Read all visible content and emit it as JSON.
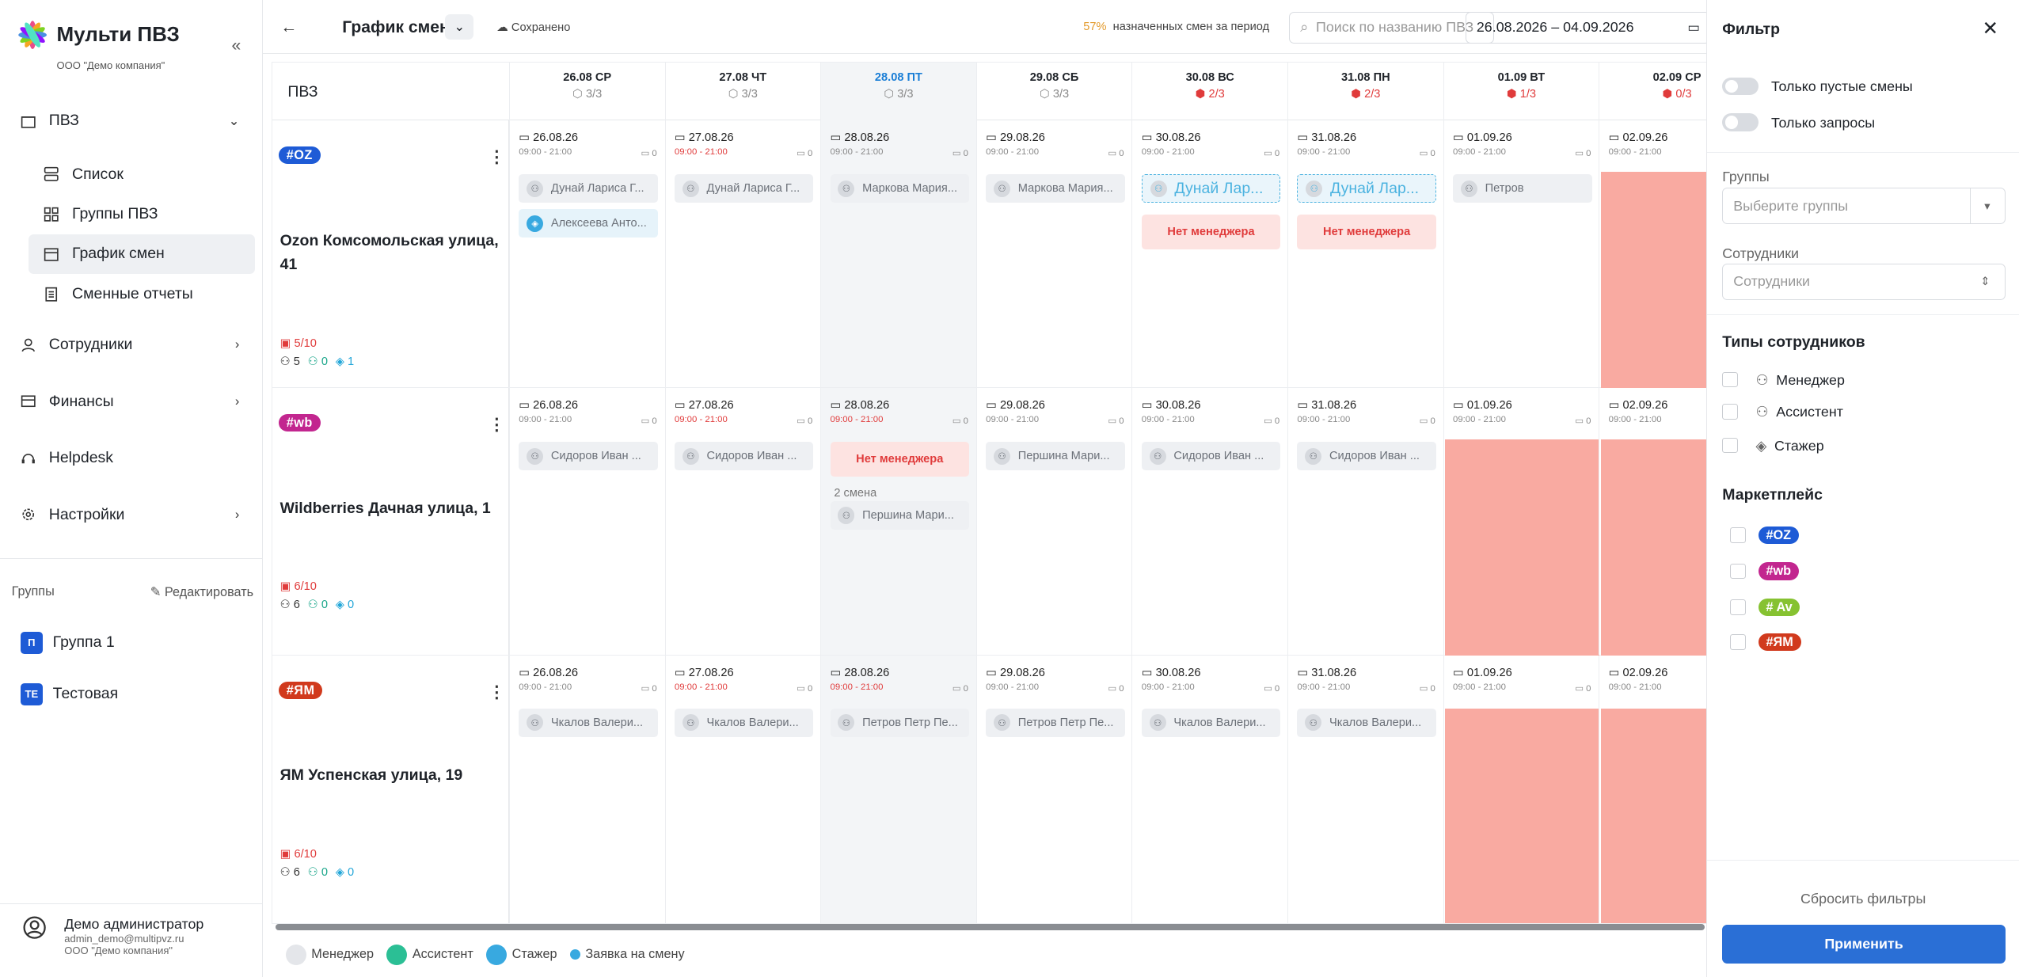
{
  "app": {
    "title": "Мульти ПВЗ",
    "company": "ООО \"Демо компания\""
  },
  "nav": {
    "pvz": "ПВЗ",
    "list": "Список",
    "groups_pvz": "Группы ПВЗ",
    "schedule": "График смен",
    "reports": "Сменные отчеты",
    "employees": "Сотрудники",
    "finance": "Финансы",
    "helpdesk": "Helpdesk",
    "settings": "Настройки"
  },
  "groups": {
    "title": "Группы",
    "edit": "Редактировать",
    "items": [
      {
        "badge": "П",
        "name": "Группа 1"
      },
      {
        "badge": "ТЕ",
        "name": "Тестовая"
      }
    ]
  },
  "user": {
    "name": "Демо администратор",
    "email": "admin_demo@multipvz.ru",
    "org": "ООО \"Демо компания\""
  },
  "topbar": {
    "title": "График смен",
    "saved": "Сохранено",
    "percent": "57%",
    "percent_text": "назначенных смен за период",
    "search_placeholder": "Поиск по названию ПВЗ",
    "date_range": "26.08.2026 – 04.09.2026"
  },
  "grid": {
    "pvz_header": "ПВЗ",
    "days": [
      {
        "label": "26.08 СР",
        "count": "3/3"
      },
      {
        "label": "27.08 ЧТ",
        "count": "3/3"
      },
      {
        "label": "28.08 ПТ",
        "count": "3/3"
      },
      {
        "label": "29.08 СБ",
        "count": "3/3"
      },
      {
        "label": "30.08 ВС",
        "count": "2/3"
      },
      {
        "label": "31.08 ПН",
        "count": "2/3"
      },
      {
        "label": "01.09 ВТ",
        "count": "1/3"
      },
      {
        "label": "02.09 СР",
        "count": "0/3"
      }
    ],
    "dates": [
      "26.08.26",
      "27.08.26",
      "28.08.26",
      "29.08.26",
      "30.08.26",
      "31.08.26",
      "01.09.26",
      "02.09.26"
    ],
    "time": "09:00 - 21:00",
    "zero": "0",
    "rows": [
      {
        "badge": "#OZ",
        "name": "Ozon Комсомольская улица, 41",
        "stat": "5/10",
        "s1": "5",
        "s2": "0",
        "s3": "1"
      },
      {
        "badge": "#wb",
        "name": "Wildberries Дачная улица, 1",
        "stat": "6/10",
        "s1": "6",
        "s2": "0",
        "s3": "0"
      },
      {
        "badge": "#ЯМ",
        "name": "ЯМ Успенская улица, 19",
        "stat": "6/10",
        "s1": "6",
        "s2": "0",
        "s3": "0"
      }
    ],
    "chips": {
      "dunay": "Дунай Лариса Г...",
      "alekseeva": "Алексеева Анто...",
      "markova": "Маркова Мария...",
      "dunay_short": "Дунай Лар...",
      "no_manager": "Нет менеджера",
      "petrov": "Петров",
      "sidorov": "Сидоров Иван ...",
      "pershina": "Першина Мари...",
      "second_shift": "2 смена",
      "chkalov": "Чкалов Валери...",
      "petrov_petr": "Петров Петр Пе..."
    }
  },
  "legend": {
    "manager": "Менеджер",
    "assistant": "Ассистент",
    "trainee": "Стажер",
    "request": "Заявка на смену"
  },
  "filter": {
    "title": "Фильтр",
    "only_empty": "Только пустые смены",
    "only_requests": "Только запросы",
    "groups_label": "Группы",
    "groups_placeholder": "Выберите группы",
    "employees_label": "Сотрудники",
    "employees_placeholder": "Сотрудники",
    "types_title": "Типы сотрудников",
    "types": [
      "Менеджер",
      "Ассистент",
      "Стажер"
    ],
    "marketplace_title": "Маркетплейс",
    "marketplaces": [
      "#OZ",
      "#wb",
      "# Av",
      "#ЯМ"
    ],
    "reset": "Сбросить фильтры",
    "apply": "Применить"
  },
  "colors": {
    "ozon": "#1e5bd6",
    "wb": "#c2268f",
    "avito": "#86c231",
    "ym": "#d13a1d",
    "accent": "#2a6fd6",
    "empty_cell": "#f9aaa1"
  }
}
